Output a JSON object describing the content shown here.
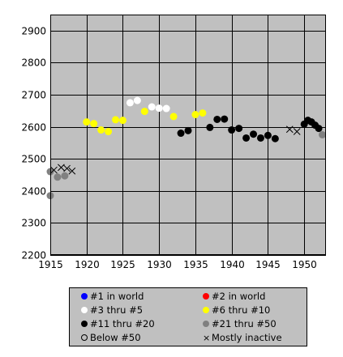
{
  "chart_data": {
    "type": "scatter",
    "title": "",
    "xlabel": "",
    "ylabel": "",
    "xlim": [
      1915,
      1953
    ],
    "ylim": [
      2200,
      2950
    ],
    "x_ticks": [
      "1915",
      "1920",
      "1925",
      "1930",
      "1935",
      "1940",
      "1945",
      "1950"
    ],
    "y_ticks": [
      "2200",
      "2300",
      "2400",
      "2500",
      "2600",
      "2700",
      "2800",
      "2900"
    ],
    "grid": true,
    "legend_position": "bottom",
    "plot_background": "#c0c0c0",
    "legend": [
      {
        "label": "#1 in world",
        "color": "#0000ff",
        "marker": "dot"
      },
      {
        "label": "#2 in world",
        "color": "#ff0000",
        "marker": "dot"
      },
      {
        "label": "#3 thru #5",
        "color": "#ffffff",
        "marker": "dot"
      },
      {
        "label": "#6 thru #10",
        "color": "#ffff00",
        "marker": "dot"
      },
      {
        "label": "#11 thru #20",
        "color": "#000000",
        "marker": "dot"
      },
      {
        "label": "#21 thru #50",
        "color": "#808080",
        "marker": "dot"
      },
      {
        "label": "Below #50",
        "color": "#c0c0c0",
        "marker": "ring"
      },
      {
        "label": "Mostly inactive",
        "color": "#000000",
        "marker": "x"
      }
    ],
    "series": [
      {
        "color": "#808080",
        "marker": "dot",
        "points": [
          [
            1915.0,
            2460
          ],
          [
            1915.0,
            2385
          ],
          [
            1916.0,
            2443
          ],
          [
            1917.0,
            2447
          ]
        ]
      },
      {
        "color": "#808080",
        "marker": "x",
        "points": [
          [
            1915.5,
            2465
          ],
          [
            1916.5,
            2473
          ],
          [
            1917.3,
            2470
          ],
          [
            1918.0,
            2462
          ]
        ]
      },
      {
        "color": "#ffff00",
        "marker": "dot",
        "points": [
          [
            1920,
            2615
          ],
          [
            1921,
            2610
          ],
          [
            1922,
            2590
          ],
          [
            1923,
            2585
          ],
          [
            1924,
            2622
          ],
          [
            1925,
            2620
          ],
          [
            1928,
            2648
          ],
          [
            1932,
            2632
          ],
          [
            1935,
            2638
          ],
          [
            1936,
            2643
          ]
        ]
      },
      {
        "color": "#ffffff",
        "marker": "dot",
        "points": [
          [
            1926,
            2675
          ],
          [
            1927,
            2682
          ],
          [
            1929,
            2662
          ],
          [
            1930,
            2658
          ],
          [
            1931,
            2657
          ]
        ]
      },
      {
        "color": "#000000",
        "marker": "dot",
        "points": [
          [
            1933,
            2580
          ],
          [
            1934,
            2588
          ],
          [
            1937,
            2598
          ],
          [
            1938,
            2623
          ],
          [
            1939,
            2624
          ],
          [
            1940,
            2590
          ],
          [
            1941,
            2595
          ],
          [
            1942,
            2565
          ],
          [
            1943,
            2577
          ],
          [
            1944,
            2565
          ],
          [
            1945,
            2573
          ],
          [
            1946,
            2563
          ],
          [
            1950,
            2608
          ],
          [
            1950.5,
            2620
          ],
          [
            1951,
            2615
          ],
          [
            1951.5,
            2605
          ],
          [
            1952,
            2595
          ]
        ]
      },
      {
        "color": "#000000",
        "marker": "x",
        "points": [
          [
            1948,
            2592
          ],
          [
            1949,
            2585
          ]
        ]
      },
      {
        "color": "#808080",
        "marker": "dot",
        "points": [
          [
            1952.5,
            2575
          ]
        ]
      }
    ]
  }
}
